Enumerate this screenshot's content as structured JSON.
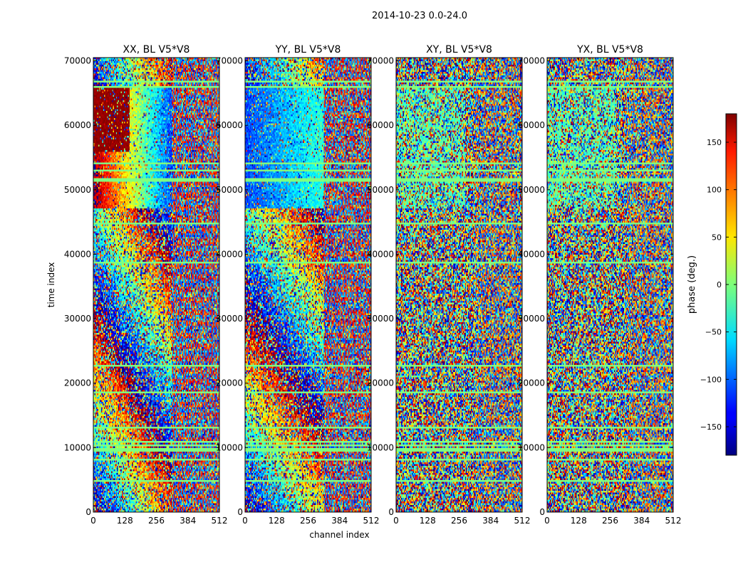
{
  "figure": {
    "suptitle": "2014-10-23 0.0-24.0"
  },
  "chart_data": [
    {
      "type": "heatmap",
      "title": "XX, BL V5*V8",
      "xlabel": "",
      "ylabel": "time index",
      "xlim": [
        0,
        512
      ],
      "ylim": [
        0,
        70500
      ],
      "xticks": [
        0,
        128,
        256,
        384,
        512
      ],
      "yticks": [
        0,
        10000,
        20000,
        30000,
        40000,
        50000,
        60000,
        70000
      ],
      "value_range": [
        -180,
        180
      ],
      "pattern": "xx"
    },
    {
      "type": "heatmap",
      "title": "YY, BL V5*V8",
      "xlabel": "channel index",
      "ylabel": "",
      "xlim": [
        0,
        512
      ],
      "ylim": [
        0,
        70500
      ],
      "xticks": [
        0,
        128,
        256,
        384,
        512
      ],
      "yticks": [
        0,
        10000,
        20000,
        30000,
        40000,
        50000,
        60000,
        70000
      ],
      "value_range": [
        -180,
        180
      ],
      "pattern": "yy"
    },
    {
      "type": "heatmap",
      "title": "XY, BL V5*V8",
      "xlabel": "",
      "ylabel": "",
      "xlim": [
        0,
        512
      ],
      "ylim": [
        0,
        70500
      ],
      "xticks": [
        0,
        128,
        256,
        384,
        512
      ],
      "yticks": [
        0,
        10000,
        20000,
        30000,
        40000,
        50000,
        60000,
        70000
      ],
      "value_range": [
        -180,
        180
      ],
      "pattern": "xy"
    },
    {
      "type": "heatmap",
      "title": "YX, BL V5*V8",
      "xlabel": "",
      "ylabel": "",
      "xlim": [
        0,
        512
      ],
      "ylim": [
        0,
        70500
      ],
      "xticks": [
        0,
        128,
        256,
        384,
        512
      ],
      "yticks": [
        0,
        10000,
        20000,
        30000,
        40000,
        50000,
        60000,
        70000
      ],
      "value_range": [
        -180,
        180
      ],
      "pattern": "yx"
    }
  ],
  "colorbar": {
    "label": "phase (deg.)",
    "range": [
      -180,
      180
    ],
    "ticks": [
      150,
      100,
      50,
      0,
      -50,
      -100,
      -150
    ],
    "tick_labels": [
      "150",
      "100",
      "50",
      "0",
      "−50",
      "−100",
      "−150"
    ],
    "colormap": "jet"
  }
}
